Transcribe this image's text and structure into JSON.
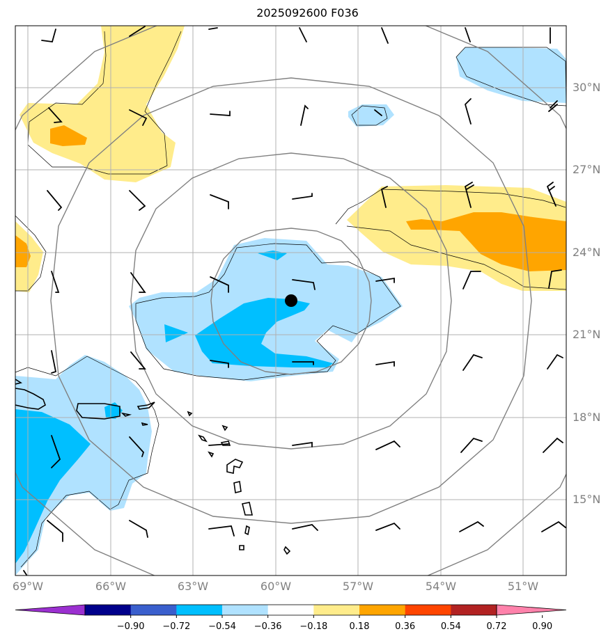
{
  "title": "2025092600 F036",
  "map": {
    "lat_labels": [
      {
        "value": 30,
        "text": "30°N"
      },
      {
        "value": 27,
        "text": "27°N"
      },
      {
        "value": 24,
        "text": "24°N"
      },
      {
        "value": 21,
        "text": "21°N"
      },
      {
        "value": 18,
        "text": "18°N"
      },
      {
        "value": 15,
        "text": "15°N"
      }
    ],
    "lon_labels": [
      {
        "value": -69,
        "text": "69°W"
      },
      {
        "value": -66,
        "text": "66°W"
      },
      {
        "value": -63,
        "text": "63°W"
      },
      {
        "value": -60,
        "text": "60°W"
      },
      {
        "value": -57,
        "text": "57°W"
      },
      {
        "value": -54,
        "text": "54°W"
      },
      {
        "value": -51,
        "text": "51°W"
      }
    ],
    "extent": {
      "lon_min": -69.0,
      "lon_max": -49.1,
      "lat_min": 12.0,
      "lat_max": 32.2
    },
    "storm_center": {
      "lon": -59.4,
      "lat": 22.3
    },
    "range_rings_deg": [
      2.5,
      5.0,
      7.5,
      10.0
    ],
    "grid_color": "#b0b0b0",
    "ring_color": "#808080",
    "coast_color": "#000000"
  },
  "colorbar": {
    "ticks": [
      "−0.90",
      "−0.72",
      "−0.54",
      "−0.36",
      "−0.18",
      "0.18",
      "0.36",
      "0.54",
      "0.72",
      "0.90"
    ],
    "colors": [
      "#9b30d0",
      "#00008b",
      "#3a5fcd",
      "#00bfff",
      "#b0e2ff",
      "#ffffff",
      "#ffec8b",
      "#ffa500",
      "#ff4500",
      "#b22222",
      "#ff82ab"
    ],
    "extend": "both"
  }
}
